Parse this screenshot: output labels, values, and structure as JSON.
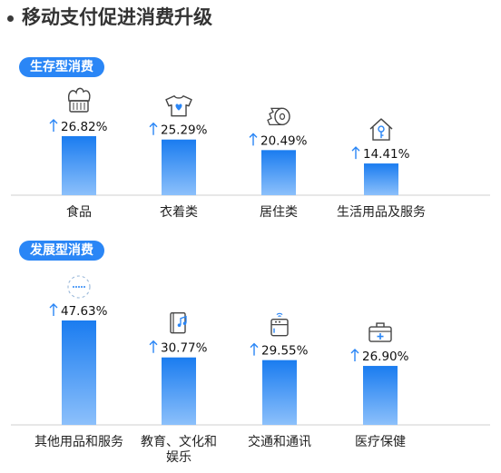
{
  "title": "移动支付促进消费升级",
  "colors": {
    "bar_top": "#1a7cf0",
    "bar_bottom": "#8cc0fb",
    "accent": "#2a86f6",
    "axis": "#cfcfcf",
    "arrow": "#2a86f6"
  },
  "chart_data": [
    {
      "type": "bar",
      "title": "生存型消费",
      "categories": [
        "食品",
        "衣着类",
        "居住类",
        "生活用品及服务"
      ],
      "values": [
        26.82,
        25.29,
        20.49,
        14.41
      ],
      "value_labels": [
        "26.82%",
        "25.29%",
        "20.49%",
        "14.41%"
      ],
      "icons": [
        "bread-icon",
        "tshirt-icon",
        "toilet-roll-icon",
        "house-key-icon"
      ],
      "value_indicator": "up-arrow"
    },
    {
      "type": "bar",
      "title": "发展型消费",
      "categories": [
        "其他用品和服务",
        "教育、文化和娱乐",
        "交通和通讯",
        "医疗保健"
      ],
      "category_lines": [
        [
          "其他用品和服务"
        ],
        [
          "教育、文化和",
          "娱乐"
        ],
        [
          "交通和通讯"
        ],
        [
          "医疗保健"
        ]
      ],
      "values": [
        47.63,
        30.77,
        29.55,
        26.9
      ],
      "value_labels": [
        "47.63%",
        "30.77%",
        "29.55%",
        "26.90%"
      ],
      "icons": [
        "dots-circle-icon",
        "book-music-icon",
        "appliance-icon",
        "medical-kit-icon"
      ],
      "value_indicator": "up-arrow"
    }
  ]
}
